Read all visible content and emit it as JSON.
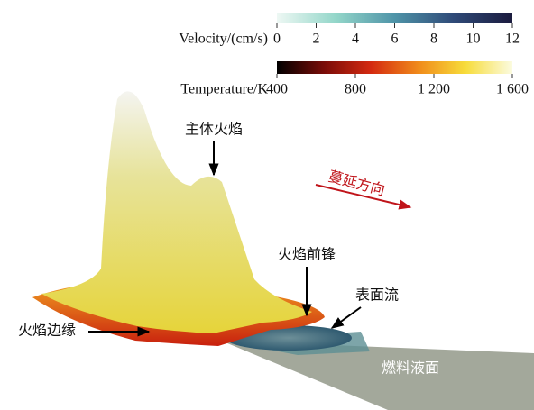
{
  "colorbars": [
    {
      "title": "Velocity/(cm/s)",
      "lim": [
        0,
        12
      ],
      "ticks": [
        0,
        2,
        4,
        6,
        8,
        10,
        12
      ],
      "colors": [
        "#eef8f4",
        "#93d6c9",
        "#4f94a8",
        "#2f4a78",
        "#1b1b3e"
      ]
    },
    {
      "title": "Temperature/K",
      "lim": [
        400,
        1600
      ],
      "ticks": [
        400,
        800,
        {
          "value": 1200,
          "label": "1 200"
        },
        {
          "value": 1600,
          "label": "1 600"
        }
      ],
      "colors": [
        "#000000",
        "#7a0c08",
        "#d42a10",
        "#f08a1a",
        "#f7dc3a",
        "#fbfbe0"
      ]
    }
  ],
  "annotations": {
    "main_flame": "主体火焰",
    "spread_direction": "蔓延方向",
    "flame_front": "火焰前锋",
    "surface_flow": "表面流",
    "flame_edge": "火焰边缘",
    "fuel_surface": "燃料液面"
  }
}
